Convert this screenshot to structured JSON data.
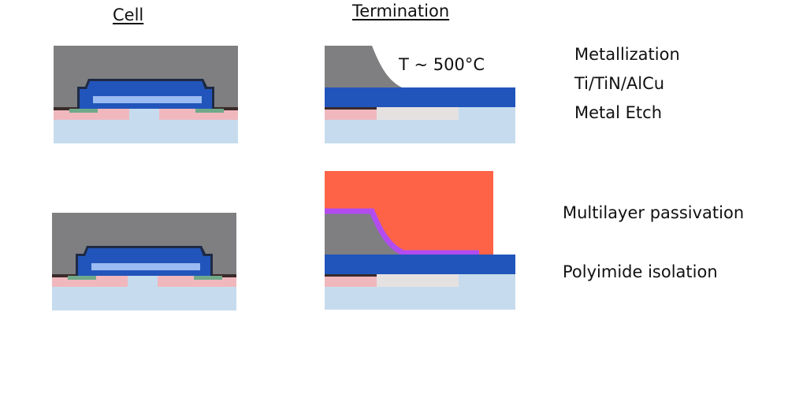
{
  "headings": {
    "cell": "Cell",
    "termination": "Termination"
  },
  "annotations": {
    "temperature": "T ~ 500°C"
  },
  "steps": [
    {
      "label": "Metallization"
    },
    {
      "label": "Ti/TiN/AlCu"
    },
    {
      "label": "Metal Etch"
    },
    {
      "label": "Multilayer passivation"
    },
    {
      "label": "Polyimide isolation"
    }
  ],
  "colors": {
    "substrate": "#c6dcee",
    "implant": "#f0b8bd",
    "implant_faint": "#e6e1e1",
    "oxide": "#7f7f81",
    "metal": "#2255bb",
    "metal_light": "#9bbcf2",
    "contact": "#6fa98a",
    "dark_layer": "#3a2a2a",
    "polyimide": "#ff6347",
    "passivation": "#b24cf0"
  }
}
